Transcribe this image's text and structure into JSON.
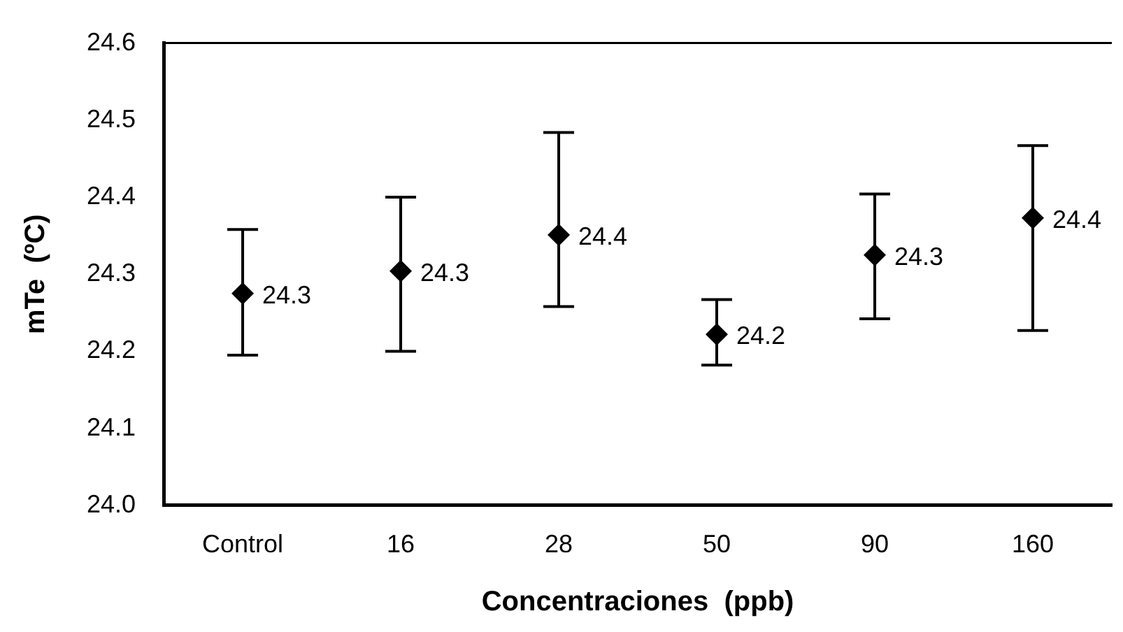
{
  "chart_data": {
    "type": "scatter",
    "xlabel": "Concentraciones  (ppb)",
    "ylabel": "mTe  (ºC)",
    "categories": [
      "Control",
      "16",
      "28",
      "50",
      "90",
      "160"
    ],
    "values": [
      24.275,
      24.304,
      24.351,
      24.222,
      24.325,
      24.373
    ],
    "errors": [
      [
        24.195,
        24.358
      ],
      [
        24.2,
        24.4
      ],
      [
        24.258,
        24.484
      ],
      [
        24.182,
        24.267
      ],
      [
        24.242,
        24.404
      ],
      [
        24.227,
        24.467
      ]
    ],
    "value_labels": [
      "24.3",
      "24.3",
      "24.4",
      "24.2",
      "24.3",
      "24.4"
    ],
    "color": "#000000",
    "marker": "diamond",
    "grid": false,
    "legend": false,
    "ylim": [
      24.0,
      24.6
    ],
    "yticks": [
      {
        "value": 24.0,
        "label": "24.0"
      },
      {
        "value": 24.1,
        "label": "24.1"
      },
      {
        "value": 24.2,
        "label": "24.2"
      },
      {
        "value": 24.3,
        "label": "24.3"
      },
      {
        "value": 24.4,
        "label": "24.4"
      },
      {
        "value": 24.5,
        "label": "24.5"
      },
      {
        "value": 24.6,
        "label": "24.6"
      }
    ]
  }
}
